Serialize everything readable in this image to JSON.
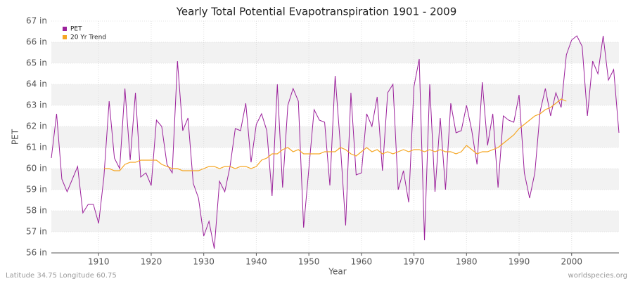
{
  "chart_data": {
    "type": "line",
    "title": "Yearly Total Potential Evapotranspiration 1901 - 2009",
    "xlabel": "Year",
    "ylabel": "PET",
    "footer_left": "Latitude 34.75 Longitude 60.75",
    "footer_right": "worldspecies.org",
    "legend": "upper left",
    "grid": true,
    "x": [
      1901,
      1902,
      1903,
      1904,
      1905,
      1906,
      1907,
      1908,
      1909,
      1910,
      1911,
      1912,
      1913,
      1914,
      1915,
      1916,
      1917,
      1918,
      1919,
      1920,
      1921,
      1922,
      1923,
      1924,
      1925,
      1926,
      1927,
      1928,
      1929,
      1930,
      1931,
      1932,
      1933,
      1934,
      1935,
      1936,
      1937,
      1938,
      1939,
      1940,
      1941,
      1942,
      1943,
      1944,
      1945,
      1946,
      1947,
      1948,
      1949,
      1950,
      1951,
      1952,
      1953,
      1954,
      1955,
      1956,
      1957,
      1958,
      1959,
      1960,
      1961,
      1962,
      1963,
      1964,
      1965,
      1966,
      1967,
      1968,
      1969,
      1970,
      1971,
      1972,
      1973,
      1974,
      1975,
      1976,
      1977,
      1978,
      1979,
      1980,
      1981,
      1982,
      1983,
      1984,
      1985,
      1986,
      1987,
      1988,
      1989,
      1990,
      1991,
      1992,
      1993,
      1994,
      1995,
      1996,
      1997,
      1998,
      1999,
      2000,
      2001,
      2002,
      2003,
      2004,
      2005,
      2006,
      2007,
      2008,
      2009
    ],
    "series": [
      {
        "name": "PET",
        "color": "#9b209b",
        "values": [
          60.5,
          62.6,
          59.5,
          58.9,
          59.5,
          60.1,
          57.9,
          58.3,
          58.3,
          57.4,
          59.6,
          63.2,
          60.5,
          60.0,
          63.8,
          60.4,
          63.6,
          59.6,
          59.8,
          59.2,
          62.3,
          62.0,
          60.2,
          59.8,
          65.1,
          61.8,
          62.4,
          59.3,
          58.6,
          56.8,
          57.5,
          56.2,
          59.4,
          58.9,
          60.1,
          61.9,
          61.8,
          63.1,
          60.3,
          62.1,
          62.6,
          61.8,
          58.7,
          64.0,
          59.1,
          63.0,
          63.8,
          63.2,
          57.2,
          60.0,
          62.8,
          62.3,
          62.2,
          59.2,
          64.4,
          61.1,
          57.3,
          63.6,
          59.7,
          59.8,
          62.6,
          62.0,
          63.4,
          59.9,
          63.6,
          64.0,
          59.0,
          59.9,
          58.4,
          63.9,
          65.2,
          56.6,
          64.0,
          58.9,
          62.4,
          59.0,
          63.1,
          61.7,
          61.8,
          63.0,
          61.8,
          60.2,
          64.1,
          61.1,
          62.6,
          59.1,
          62.5,
          62.3,
          62.2,
          63.5,
          59.8,
          58.6,
          59.8,
          62.7,
          63.8,
          62.5,
          63.6,
          62.9,
          65.4,
          66.1,
          66.3,
          65.8,
          62.5,
          65.1,
          64.5,
          66.3,
          64.2,
          64.7,
          61.7
        ]
      },
      {
        "name": "20 Yr Trend",
        "color": "#f5a623",
        "values": [
          null,
          null,
          null,
          null,
          null,
          null,
          null,
          null,
          null,
          null,
          60.0,
          60.0,
          59.9,
          59.9,
          60.2,
          60.3,
          60.3,
          60.4,
          60.4,
          60.4,
          60.4,
          60.2,
          60.1,
          60.0,
          60.0,
          59.9,
          59.9,
          59.9,
          59.9,
          60.0,
          60.1,
          60.1,
          60.0,
          60.1,
          60.1,
          60.0,
          60.1,
          60.1,
          60.0,
          60.1,
          60.4,
          60.5,
          60.7,
          60.7,
          60.9,
          61.0,
          60.8,
          60.9,
          60.7,
          60.7,
          60.7,
          60.7,
          60.8,
          60.8,
          60.8,
          61.0,
          60.9,
          60.7,
          60.6,
          60.8,
          61.0,
          60.8,
          60.9,
          60.7,
          60.8,
          60.7,
          60.8,
          60.9,
          60.8,
          60.9,
          60.9,
          60.8,
          60.9,
          60.8,
          60.9,
          60.8,
          60.8,
          60.7,
          60.8,
          61.1,
          60.9,
          60.7,
          60.8,
          60.8,
          60.9,
          61.0,
          61.2,
          61.4,
          61.6,
          61.9,
          62.1,
          62.3,
          62.5,
          62.6,
          62.8,
          62.9,
          63.1,
          63.3,
          63.2,
          null,
          null,
          null,
          null,
          null,
          null,
          null,
          null,
          null,
          null
        ]
      }
    ],
    "xlim": [
      1901,
      2009
    ],
    "xticks": [
      1910,
      1920,
      1930,
      1940,
      1950,
      1960,
      1970,
      1980,
      1990,
      2000
    ],
    "ylim": [
      56,
      67
    ],
    "yticks": [
      {
        "value": 56,
        "label": "56 in"
      },
      {
        "value": 57,
        "label": "57 in"
      },
      {
        "value": 58,
        "label": "58 in"
      },
      {
        "value": 59,
        "label": "59 in"
      },
      {
        "value": 60,
        "label": "60 in"
      },
      {
        "value": 61,
        "label": "61 in"
      },
      {
        "value": 62,
        "label": "62 in"
      },
      {
        "value": 63,
        "label": "63 in"
      },
      {
        "value": 64,
        "label": "64 in"
      },
      {
        "value": 65,
        "label": "65 in"
      },
      {
        "value": 66,
        "label": "66 in"
      },
      {
        "value": 67,
        "label": "67 in"
      }
    ]
  }
}
